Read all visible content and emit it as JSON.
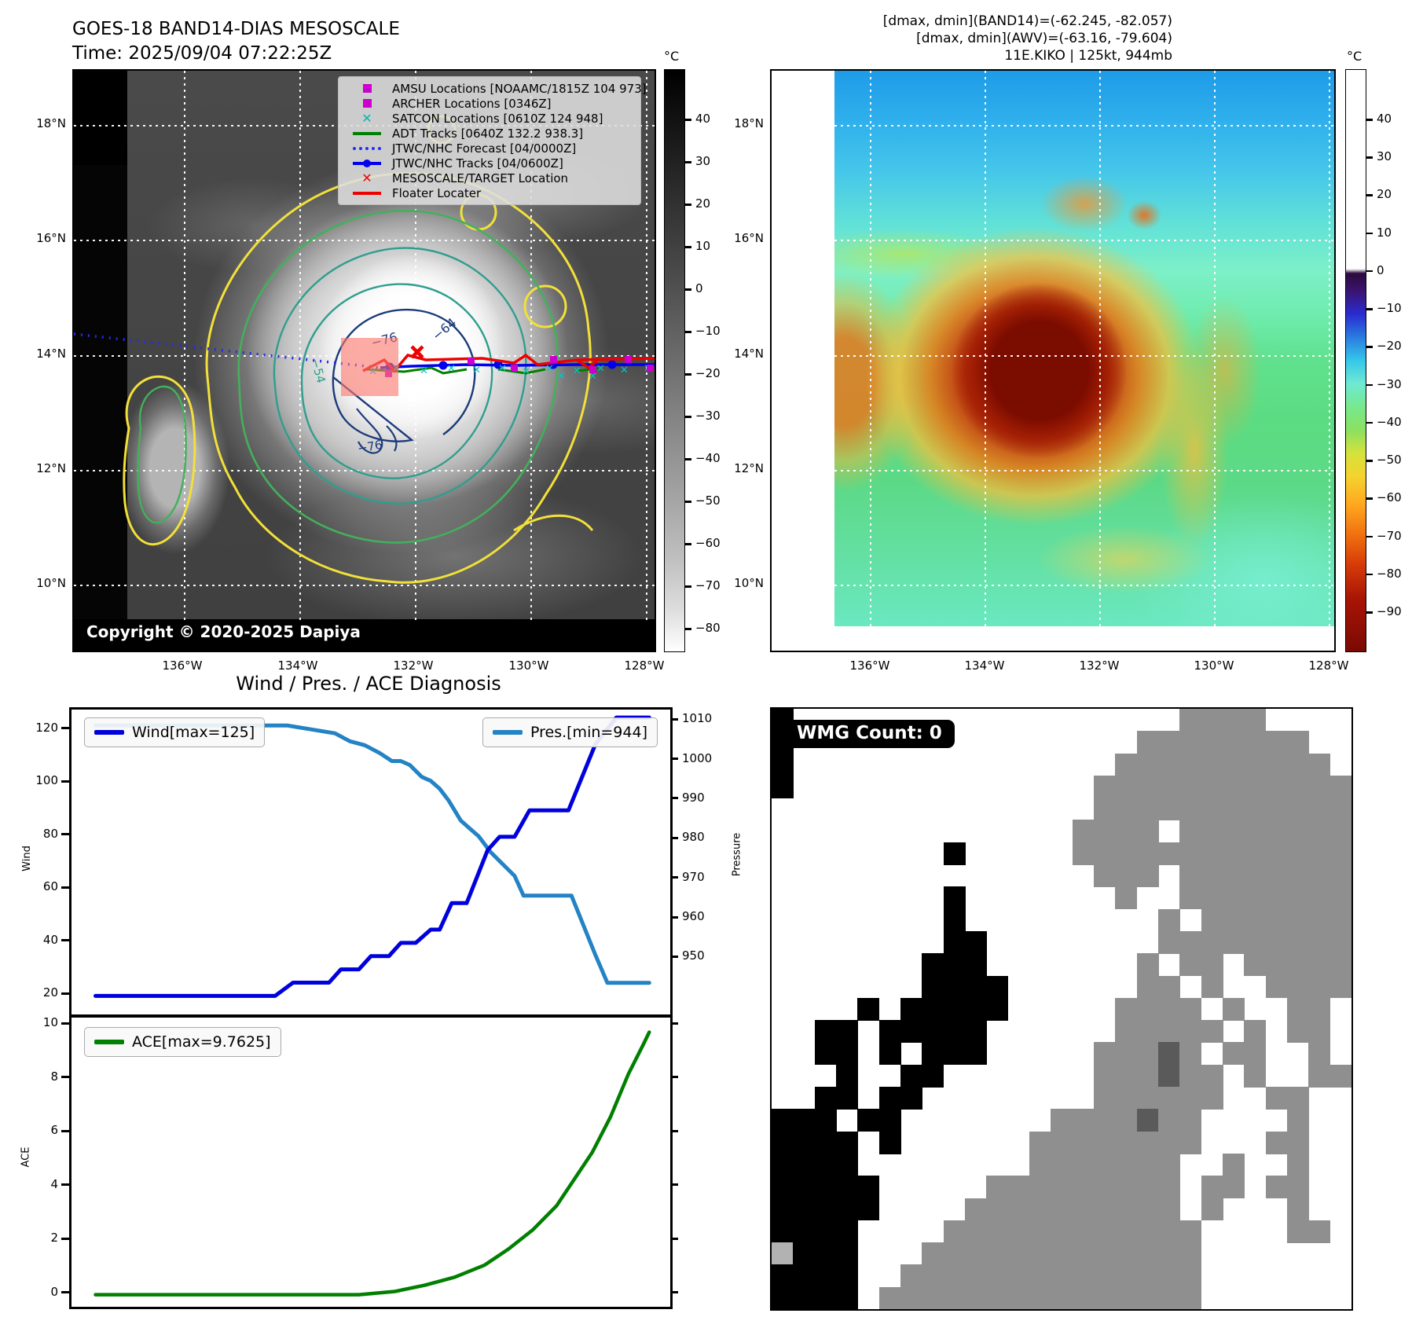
{
  "title": {
    "line1": "GOES-18 BAND14-DIAS MESOSCALE",
    "line2": "Time: 2025/09/04 07:22:25Z"
  },
  "info": {
    "line1": "[dmax, dmin](BAND14)=(-62.245, -82.057)",
    "line2": "[dmax, dmin](AWV)=(-63.16, -79.604)",
    "line3": "11E.KIKO | 125kt, 944mb"
  },
  "sat_panel": {
    "legend": [
      {
        "label": "AMSU Locations [NOAAMC/1815Z 104 973]",
        "marker": "square",
        "color": "#cc00cc"
      },
      {
        "label": "ARCHER Locations [0346Z]",
        "marker": "square",
        "color": "#cc00cc"
      },
      {
        "label": "SATCON Locations [0610Z 124 948]",
        "marker": "x",
        "color": "#00b8b8"
      },
      {
        "label": "ADT Tracks [0640Z 132.2 938.3]",
        "marker": "line",
        "color": "#008000"
      },
      {
        "label": "JTWC/NHC Forecast [04/0000Z]",
        "marker": "dotted-line",
        "color": "#2929ff"
      },
      {
        "label": "JTWC/NHC Tracks [04/0600Z]",
        "marker": "line-dot",
        "color": "#0000ee"
      },
      {
        "label": "MESOSCALE/TARGET Location",
        "marker": "x",
        "color": "#ee0000"
      },
      {
        "label": "Floater Locater",
        "marker": "line",
        "color": "#ee0000"
      }
    ],
    "copyright": "Copyright © 2020-2025 Dapiya",
    "lat_labels": [
      "18°N",
      "16°N",
      "14°N",
      "12°N",
      "10°N"
    ],
    "lon_labels": [
      "136°W",
      "134°W",
      "132°W",
      "130°W",
      "128°W"
    ],
    "contour_labels": [
      "−76",
      "−64",
      "−54",
      "−76"
    ],
    "colorbar": {
      "unit": "°C",
      "ticks": [
        "40",
        "30",
        "20",
        "10",
        "0",
        "−10",
        "−20",
        "−30",
        "−40",
        "−50",
        "−60",
        "−70",
        "−80"
      ]
    }
  },
  "ir_panel": {
    "lat_labels": [
      "18°N",
      "16°N",
      "14°N",
      "12°N",
      "10°N"
    ],
    "lon_labels": [
      "136°W",
      "134°W",
      "132°W",
      "130°W",
      "128°W"
    ],
    "colorbar": {
      "unit": "°C",
      "ticks": [
        "40",
        "30",
        "20",
        "10",
        "0",
        "−10",
        "−20",
        "−30",
        "−40",
        "−50",
        "−60",
        "−70",
        "−80",
        "−90"
      ]
    }
  },
  "wmg": {
    "label": "WMG Count: 0",
    "colors": {
      "K": "#000000",
      "G": "#8f8f8f",
      "D": "#5a5a5a",
      "L": "#b2b2b2",
      ".": "#ffffff"
    },
    "grid": [
      "K..................GGGG....",
      "K................GGGGGGGG..",
      "K...............GGGGGGGGGG.",
      "K..............GGGGGGGGGGGG",
      "...............GGGGGGGGGGGG",
      "..............GGGG.GGGGGGGG",
      "........K.....GGGGGGGGGGGGG",
      "...............GGG.GGGGGGGG",
      "........K.......G..GGGGGGGG",
      "........K.........G.GGGGGGG",
      "........KK........GGGGGGGGG",
      ".......KKK.......G.GG.GGGGG",
      ".......KKKK......GG.G..GGGG",
      "....K.KKKKK.....GGGG.G..GG.",
      "..KK.KKKKK......GGGGG.G.GG.",
      "..KK.K.KKK.....GGGDG.GG..G.",
      "...K..KK.......GGGDGG.G..GG",
      "..KK.KK........GGGGGG..GG..",
      "KKK.KK.......GGGGDGG....G..",
      "KKKK.K......GGGGGGGG...GG..",
      "KKKK........GGGGGGG..G..G..",
      "KKKKK.....GGGGGGGGG.GG.GG..",
      "KKKKK....GGGGGGGGGG.G...G..",
      "KKKK....GGGGGGGGGGGG....GG.",
      "LKKK...GGGGGGGGGGGGG.......",
      "KKKK..GGGGGGGGGGGGGG.......",
      "KKKK.GGGGGGGGGGGGGGG......."
    ]
  },
  "chart_data": [
    {
      "type": "line",
      "title": "Wind / Pres. / ACE Diagnosis",
      "panel": "wind-pressure",
      "left_axis": {
        "label": "Wind",
        "ticks": [
          20,
          40,
          60,
          80,
          100,
          120
        ],
        "range": [
          13,
          128
        ]
      },
      "right_axis": {
        "label": "Pressure",
        "ticks": [
          950,
          960,
          970,
          980,
          990,
          1000,
          1010
        ],
        "range": [
          936,
          1013
        ]
      },
      "x_axis": {
        "tick_labels_visible": false,
        "range": [
          0,
          1
        ]
      },
      "grid": false,
      "series": [
        {
          "name": "Wind[max=125]",
          "color": "#0000dd",
          "axis": "left",
          "points": [
            [
              0.04,
              20
            ],
            [
              0.34,
              20
            ],
            [
              0.37,
              25
            ],
            [
              0.43,
              25
            ],
            [
              0.45,
              30
            ],
            [
              0.48,
              30
            ],
            [
              0.5,
              35
            ],
            [
              0.53,
              35
            ],
            [
              0.55,
              40
            ],
            [
              0.575,
              40
            ],
            [
              0.6,
              45
            ],
            [
              0.615,
              45
            ],
            [
              0.635,
              55
            ],
            [
              0.66,
              55
            ],
            [
              0.695,
              75
            ],
            [
              0.715,
              80
            ],
            [
              0.74,
              80
            ],
            [
              0.765,
              90
            ],
            [
              0.83,
              90
            ],
            [
              0.875,
              115
            ],
            [
              0.91,
              125
            ],
            [
              0.965,
              125
            ]
          ]
        },
        {
          "name": "Pres.[min=944]",
          "color": "#2383c4",
          "axis": "right",
          "points": [
            [
              0.04,
              1009
            ],
            [
              0.36,
              1009
            ],
            [
              0.4,
              1008
            ],
            [
              0.44,
              1007
            ],
            [
              0.465,
              1005
            ],
            [
              0.49,
              1004
            ],
            [
              0.515,
              1002
            ],
            [
              0.535,
              1000
            ],
            [
              0.55,
              1000
            ],
            [
              0.565,
              999
            ],
            [
              0.585,
              996
            ],
            [
              0.6,
              995
            ],
            [
              0.615,
              993
            ],
            [
              0.63,
              990
            ],
            [
              0.65,
              985
            ],
            [
              0.665,
              983
            ],
            [
              0.68,
              981
            ],
            [
              0.7,
              977
            ],
            [
              0.72,
              974
            ],
            [
              0.74,
              971
            ],
            [
              0.755,
              966
            ],
            [
              0.835,
              966
            ],
            [
              0.875,
              951
            ],
            [
              0.895,
              944
            ],
            [
              0.965,
              944
            ]
          ]
        }
      ]
    },
    {
      "type": "line",
      "panel": "ace",
      "y_axis": {
        "label": "ACE",
        "ticks": [
          0,
          2,
          4,
          6,
          8,
          10
        ],
        "range": [
          -0.45,
          10.3
        ]
      },
      "x_axis": {
        "tick_labels_visible": false,
        "range": [
          0,
          1
        ]
      },
      "grid": false,
      "series": [
        {
          "name": "ACE[max=9.7625]",
          "color": "#007f00",
          "points": [
            [
              0.04,
              0
            ],
            [
              0.48,
              0
            ],
            [
              0.54,
              0.12
            ],
            [
              0.59,
              0.35
            ],
            [
              0.64,
              0.65
            ],
            [
              0.69,
              1.1
            ],
            [
              0.73,
              1.7
            ],
            [
              0.77,
              2.4
            ],
            [
              0.81,
              3.3
            ],
            [
              0.84,
              4.3
            ],
            [
              0.87,
              5.3
            ],
            [
              0.9,
              6.6
            ],
            [
              0.93,
              8.2
            ],
            [
              0.955,
              9.3
            ],
            [
              0.965,
              9.76
            ]
          ]
        }
      ]
    }
  ]
}
